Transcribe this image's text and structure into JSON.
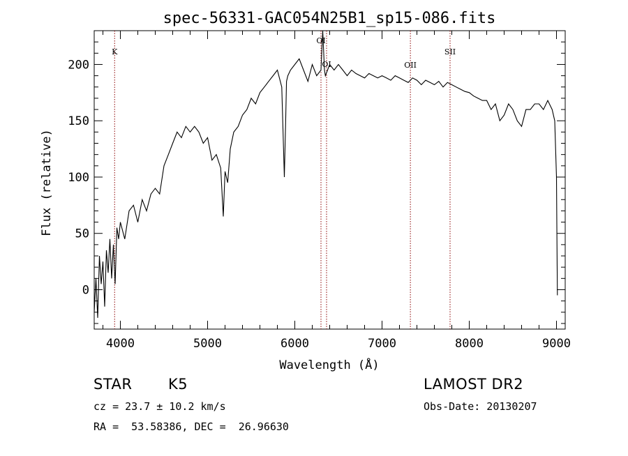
{
  "chart_data": {
    "type": "line",
    "title": "spec-56331-GAC054N25B1_sp15-086.fits",
    "xlabel": "Wavelength (Å)",
    "ylabel": "Flux (relative)",
    "xlim": [
      3700,
      9100
    ],
    "ylim": [
      -35,
      230
    ],
    "xticks": [
      4000,
      5000,
      6000,
      7000,
      8000,
      9000
    ],
    "yticks": [
      0,
      50,
      100,
      150,
      200
    ],
    "grid": false,
    "line_color": "#000000",
    "marker_color": "#8b0000",
    "series": [
      {
        "x": [
          3700,
          3720,
          3740,
          3760,
          3780,
          3800,
          3820,
          3840,
          3860,
          3880,
          3900,
          3920,
          3940,
          3960,
          3980,
          4000,
          4050,
          4100,
          4150,
          4200,
          4250,
          4300,
          4350,
          4400,
          4450,
          4500,
          4550,
          4600,
          4650,
          4700,
          4750,
          4800,
          4850,
          4900,
          4950,
          5000,
          5050,
          5100,
          5150,
          5180,
          5200,
          5230,
          5260,
          5300,
          5350,
          5400,
          5450,
          5500,
          5550,
          5600,
          5650,
          5700,
          5750,
          5800,
          5850,
          5880,
          5895,
          5905,
          5920,
          5950,
          6000,
          6050,
          6100,
          6150,
          6200,
          6250,
          6300,
          6320,
          6340,
          6350,
          6400,
          6450,
          6500,
          6550,
          6600,
          6650,
          6700,
          6750,
          6800,
          6850,
          6900,
          6950,
          7000,
          7050,
          7100,
          7150,
          7200,
          7250,
          7300,
          7350,
          7400,
          7450,
          7500,
          7550,
          7600,
          7650,
          7700,
          7750,
          7800,
          7850,
          7900,
          7950,
          8000,
          8050,
          8100,
          8150,
          8200,
          8250,
          8300,
          8350,
          8400,
          8450,
          8500,
          8550,
          8600,
          8650,
          8700,
          8750,
          8800,
          8850,
          8900,
          8950,
          8980,
          9000,
          9005,
          9010
        ],
        "y": [
          -20,
          10,
          -25,
          30,
          5,
          25,
          -15,
          35,
          15,
          45,
          10,
          40,
          5,
          55,
          45,
          60,
          45,
          70,
          75,
          60,
          80,
          70,
          85,
          90,
          85,
          110,
          120,
          130,
          140,
          135,
          145,
          140,
          145,
          140,
          130,
          135,
          115,
          120,
          108,
          65,
          105,
          95,
          125,
          140,
          145,
          155,
          160,
          170,
          165,
          175,
          180,
          185,
          190,
          195,
          180,
          100,
          150,
          185,
          190,
          195,
          200,
          205,
          195,
          185,
          200,
          190,
          195,
          230,
          195,
          190,
          200,
          195,
          200,
          195,
          190,
          195,
          192,
          190,
          188,
          192,
          190,
          188,
          190,
          188,
          186,
          190,
          188,
          186,
          184,
          188,
          186,
          182,
          186,
          184,
          182,
          185,
          180,
          184,
          182,
          180,
          178,
          176,
          175,
          172,
          170,
          168,
          168,
          160,
          165,
          150,
          155,
          165,
          160,
          150,
          145,
          160,
          160,
          165,
          165,
          160,
          168,
          160,
          150,
          100,
          50,
          -5
        ]
      }
    ],
    "lines": [
      {
        "label": "K",
        "x": 3934
      },
      {
        "label": "OI",
        "x": 6300
      },
      {
        "label": "OI",
        "x": 6364
      },
      {
        "label": "OII",
        "x": 7325
      },
      {
        "label": "SII",
        "x": 7780
      }
    ]
  },
  "info": {
    "object_class": "STAR",
    "subclass": "K5",
    "survey": "LAMOST DR2",
    "cz": "cz = 23.7 ± 10.2 km/s",
    "obs_date": "Obs-Date: 20130207",
    "coords": "RA =  53.58386, DEC =  26.96630"
  }
}
